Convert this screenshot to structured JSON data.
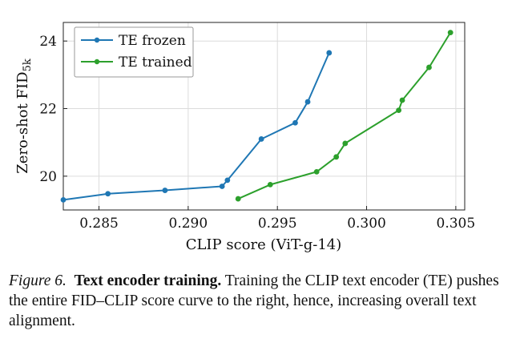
{
  "chart_data": {
    "type": "line",
    "xlabel": "CLIP score (ViT-g-14)",
    "ylabel_main": "Zero-shot FID",
    "ylabel_sub": "5k",
    "xlim": [
      0.283,
      0.3055
    ],
    "ylim": [
      19.0,
      24.55
    ],
    "xticks": [
      0.285,
      0.29,
      0.295,
      0.3,
      0.305
    ],
    "xtick_labels": [
      "0.285",
      "0.290",
      "0.295",
      "0.300",
      "0.305"
    ],
    "yticks": [
      20,
      22,
      24
    ],
    "ytick_labels": [
      "20",
      "22",
      "24"
    ],
    "grid": true,
    "legend_position": "top-left",
    "series": [
      {
        "name": "TE frozen",
        "color": "#1f77b4",
        "x": [
          0.283,
          0.2855,
          0.2887,
          0.2919,
          0.2922,
          0.2941,
          0.296,
          0.2967,
          0.2979
        ],
        "y": [
          19.3,
          19.48,
          19.58,
          19.7,
          19.88,
          21.1,
          21.58,
          22.2,
          23.65
        ]
      },
      {
        "name": "TE trained",
        "color": "#2ca02c",
        "x": [
          0.2928,
          0.2946,
          0.2972,
          0.2983,
          0.2988,
          0.3018,
          0.302,
          0.3035,
          0.3047
        ],
        "y": [
          19.33,
          19.75,
          20.13,
          20.57,
          20.97,
          21.95,
          22.25,
          23.22,
          24.25
        ]
      }
    ]
  },
  "caption": {
    "label": "Figure 6.",
    "title": "Text encoder training.",
    "text": "Training the CLIP text encoder (TE) pushes the entire FID–CLIP score curve to the right, hence, increasing overall text alignment."
  }
}
